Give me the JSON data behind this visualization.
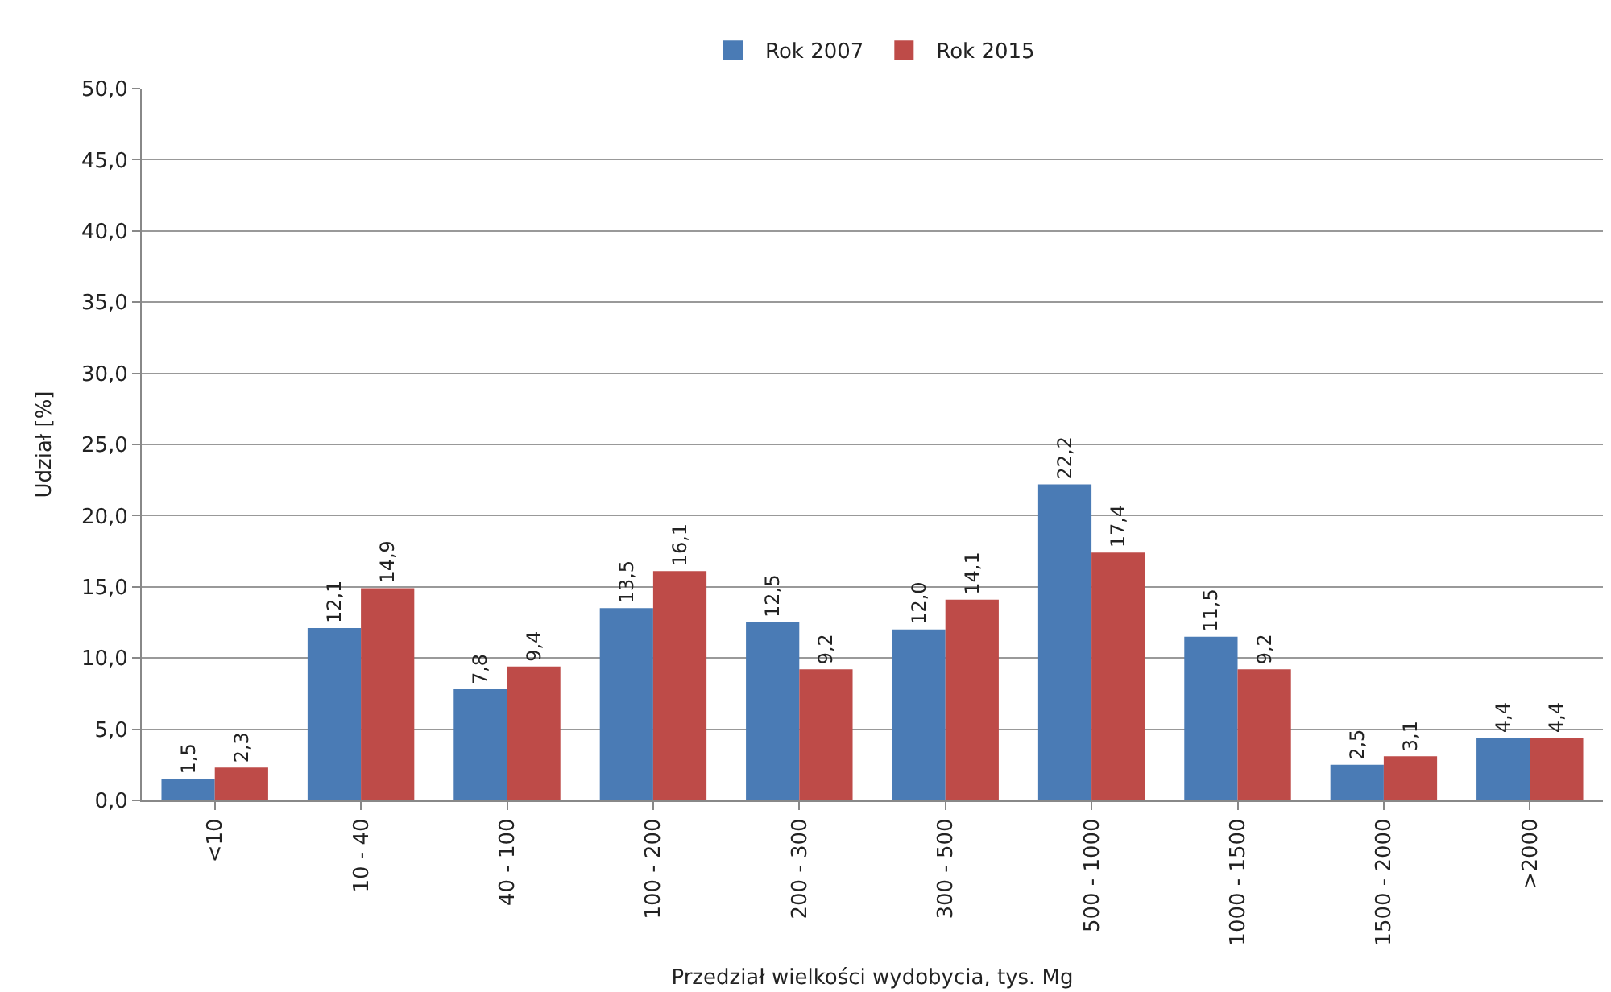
{
  "chart_data": {
    "type": "bar",
    "xlabel": "Przedział wielkości wydobycia, tys. Mg",
    "ylabel": "Udział [%]",
    "categories": [
      "<10",
      "10 - 40",
      "40 - 100",
      "100 - 200",
      "200 - 300",
      "300 - 500",
      "500 - 1000",
      "1000 - 1500",
      "1500 - 2000",
      ">2000"
    ],
    "series": [
      {
        "name": "Rok 2007",
        "color": "#4a7bb5",
        "values": [
          1.5,
          12.1,
          7.8,
          13.5,
          12.5,
          12.0,
          22.2,
          11.5,
          2.5,
          4.4
        ],
        "value_labels": [
          "1,5",
          "12,1",
          "7,8",
          "13,5",
          "12,5",
          "12,0",
          "22,2",
          "11,5",
          "2,5",
          "4,4"
        ]
      },
      {
        "name": "Rok 2015",
        "color": "#be4b48",
        "values": [
          2.3,
          14.9,
          9.4,
          16.1,
          9.2,
          14.1,
          17.4,
          9.2,
          3.1,
          4.4
        ],
        "value_labels": [
          "2,3",
          "14,9",
          "9,4",
          "16,1",
          "9,2",
          "14,1",
          "17,4",
          "9,2",
          "3,1",
          "4,4"
        ]
      }
    ],
    "ylim": [
      0,
      50
    ],
    "yticks": [
      {
        "value": 0,
        "label": "0,0"
      },
      {
        "value": 5,
        "label": "5,0"
      },
      {
        "value": 10,
        "label": "10,0"
      },
      {
        "value": 15,
        "label": "15,0"
      },
      {
        "value": 20,
        "label": "20,0"
      },
      {
        "value": 25,
        "label": "25,0"
      },
      {
        "value": 30,
        "label": "30,0"
      },
      {
        "value": 35,
        "label": "35,0"
      },
      {
        "value": 40,
        "label": "40,0"
      },
      {
        "value": 45,
        "label": "45,0"
      },
      {
        "value": 50,
        "label": "50,0"
      }
    ],
    "grid": "y",
    "legend": "top"
  }
}
